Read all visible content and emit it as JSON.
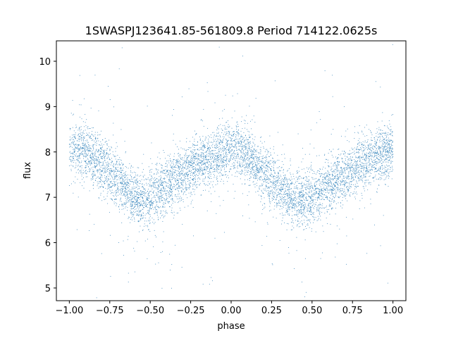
{
  "chart_data": {
    "type": "scatter",
    "title": "1SWASPJ123641.85-561809.8 Period 714122.0625s",
    "xlabel": "phase",
    "ylabel": "flux",
    "xlim": [
      -1.08,
      1.08
    ],
    "ylim": [
      4.72,
      10.45
    ],
    "x_ticks": [
      {
        "value": -1.0,
        "label": "−1.00"
      },
      {
        "value": -0.75,
        "label": "−0.75"
      },
      {
        "value": -0.5,
        "label": "−0.50"
      },
      {
        "value": -0.25,
        "label": "−0.25"
      },
      {
        "value": 0.0,
        "label": "0.00"
      },
      {
        "value": 0.25,
        "label": "0.25"
      },
      {
        "value": 0.5,
        "label": "0.50"
      },
      {
        "value": 0.75,
        "label": "0.75"
      },
      {
        "value": 1.0,
        "label": "1.00"
      }
    ],
    "y_ticks": [
      {
        "value": 5,
        "label": "5"
      },
      {
        "value": 6,
        "label": "6"
      },
      {
        "value": 7,
        "label": "7"
      },
      {
        "value": 8,
        "label": "8"
      },
      {
        "value": 9,
        "label": "9"
      },
      {
        "value": 10,
        "label": "10"
      }
    ],
    "grid": false,
    "point_color": "#1f77b4",
    "trend": {
      "x": [
        -1.0,
        -0.9,
        -0.8,
        -0.7,
        -0.6,
        -0.5,
        -0.45,
        -0.4,
        -0.3,
        -0.2,
        -0.1,
        0.0,
        0.05,
        0.1,
        0.2,
        0.3,
        0.4,
        0.5,
        0.55,
        0.6,
        0.7,
        0.8,
        0.9,
        1.0
      ],
      "y": [
        8.1,
        8.0,
        7.75,
        7.35,
        7.0,
        6.95,
        7.1,
        7.25,
        7.5,
        7.75,
        7.9,
        8.05,
        8.05,
        7.95,
        7.55,
        7.2,
        6.95,
        6.95,
        7.1,
        7.25,
        7.5,
        7.75,
        7.9,
        8.05
      ]
    }
  }
}
